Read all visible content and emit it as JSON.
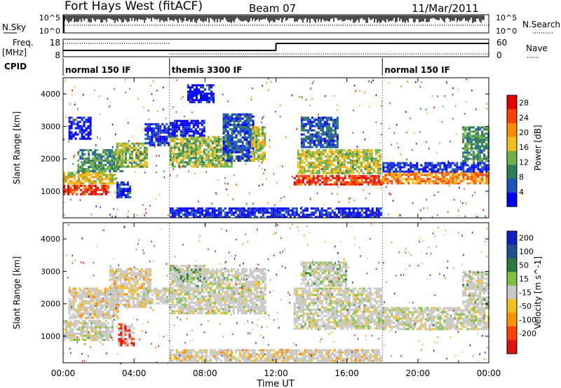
{
  "header": {
    "station": "Fort Hays West (fitACF)",
    "beam": "Beam 07",
    "date": "11/Mar/2011"
  },
  "panels": {
    "nsky": {
      "label": "N.Sky",
      "left_ticks": [
        "10^5",
        "10^0"
      ],
      "right_ticks": [
        "10^5",
        "10^0"
      ],
      "right_label": "N.Search",
      "series": [
        {
          "name": "N.Sky",
          "style": "solid"
        },
        {
          "name": "N.Search",
          "style": "dotted"
        }
      ]
    },
    "freq": {
      "label_line1": "Freq.",
      "label_line2": "[MHz]",
      "left_ticks": [
        "18",
        "8"
      ],
      "right_ticks": [
        "60",
        "0"
      ],
      "right_label": "Nave",
      "series": [
        {
          "name": "Freq.",
          "style": "solid"
        },
        {
          "name": "Nave",
          "style": "dotted"
        }
      ]
    },
    "cpid": {
      "label": "CPID",
      "segments": [
        {
          "name": "normal 150 IF",
          "start_h": 0,
          "end_h": 6
        },
        {
          "name": "themis 3300 IF",
          "start_h": 6,
          "end_h": 18
        },
        {
          "name": "normal 150 IF",
          "start_h": 18,
          "end_h": 24
        }
      ]
    }
  },
  "colors": {
    "power": [
      "#0000ff",
      "#1c4fc0",
      "#2e7d56",
      "#6fb04a",
      "#f0c020",
      "#ff8c00",
      "#ff4000",
      "#e80000"
    ],
    "velocity": [
      "#1020c0",
      "#205090",
      "#2a7a3a",
      "#80c040",
      "#c8c8c8",
      "#f0c020",
      "#ff9000",
      "#ff4000",
      "#e01010"
    ],
    "ground_scatter": "#b8b8b8"
  },
  "chart_data": [
    {
      "type": "heatmap",
      "title": "",
      "xlabel": "Time UT",
      "ylabel": "Slant Range [km]",
      "x_ticks": [
        "00:00",
        "04:00",
        "08:00",
        "12:00",
        "16:00",
        "20:00",
        "00:00"
      ],
      "y_ticks": [
        "1000",
        "2000",
        "3000",
        "4000"
      ],
      "xlim_hours": [
        0,
        24
      ],
      "ylim_km": [
        180,
        4500
      ],
      "colorbar": {
        "label": "Power [dB]",
        "ticks": [
          "4",
          "8",
          "12",
          "16",
          "20",
          "24",
          "28"
        ],
        "range": [
          0,
          30
        ]
      },
      "mode_boundaries_h": [
        6,
        18
      ],
      "regions": [
        {
          "t0": 0.0,
          "t1": 2.6,
          "r0": 850,
          "r1": 1200,
          "level": 0.85
        },
        {
          "t0": 0.0,
          "t1": 3.0,
          "r0": 1200,
          "r1": 1600,
          "level": 0.55
        },
        {
          "t0": 0.8,
          "t1": 3.4,
          "r0": 1600,
          "r1": 2300,
          "level": 0.35
        },
        {
          "t0": 0.3,
          "t1": 1.6,
          "r0": 2600,
          "r1": 3300,
          "level": 0.05
        },
        {
          "t0": 3.0,
          "t1": 4.8,
          "r0": 1700,
          "r1": 2500,
          "level": 0.45
        },
        {
          "t0": 4.6,
          "t1": 6.0,
          "r0": 2400,
          "r1": 3100,
          "level": 0.12
        },
        {
          "t0": 3.0,
          "t1": 3.8,
          "r0": 750,
          "r1": 1300,
          "level": 0.15
        },
        {
          "t0": 6.0,
          "t1": 9.5,
          "r0": 1700,
          "r1": 2700,
          "level": 0.45
        },
        {
          "t0": 6.0,
          "t1": 8.0,
          "r0": 2700,
          "r1": 3200,
          "level": 0.05
        },
        {
          "t0": 9.0,
          "t1": 10.8,
          "r0": 1900,
          "r1": 3400,
          "level": 0.2
        },
        {
          "t0": 7.0,
          "t1": 8.5,
          "r0": 3700,
          "r1": 4300,
          "level": 0.05
        },
        {
          "t0": 10.6,
          "t1": 11.4,
          "r0": 1900,
          "r1": 3000,
          "level": 0.5
        },
        {
          "t0": 13.0,
          "t1": 18.0,
          "r0": 1150,
          "r1": 1500,
          "level": 0.85
        },
        {
          "t0": 13.2,
          "t1": 18.0,
          "r0": 1500,
          "r1": 2300,
          "level": 0.5
        },
        {
          "t0": 13.4,
          "t1": 15.5,
          "r0": 2300,
          "r1": 3300,
          "level": 0.2
        },
        {
          "t0": 18.0,
          "t1": 24.0,
          "r0": 1200,
          "r1": 1600,
          "level": 0.7
        },
        {
          "t0": 18.0,
          "t1": 24.0,
          "r0": 1600,
          "r1": 1900,
          "level": 0.12
        },
        {
          "t0": 22.5,
          "t1": 24.0,
          "r0": 1900,
          "r1": 3000,
          "level": 0.35
        },
        {
          "t0": 6.0,
          "t1": 18.0,
          "r0": 180,
          "r1": 500,
          "level": 0.08
        }
      ]
    },
    {
      "type": "heatmap",
      "title": "",
      "xlabel": "Time UT",
      "ylabel": "Slant Range [km]",
      "x_ticks": [
        "00:00",
        "04:00",
        "08:00",
        "12:00",
        "16:00",
        "20:00",
        "00:00"
      ],
      "y_ticks": [
        "1000",
        "2000",
        "3000",
        "4000"
      ],
      "xlim_hours": [
        0,
        24
      ],
      "ylim_km": [
        180,
        4500
      ],
      "colorbar": {
        "label": "Velocity [m s^-1]",
        "ticks": [
          "200",
          "100",
          "50",
          "15",
          "-15",
          "-50",
          "-100",
          "-200"
        ],
        "range": [
          -250,
          250
        ]
      },
      "mode_boundaries_h": [
        6,
        18
      ],
      "regions": [
        {
          "t0": 0.0,
          "t1": 2.8,
          "r0": 850,
          "r1": 1500,
          "level": 0.5
        },
        {
          "t0": 0.3,
          "t1": 3.2,
          "r0": 1500,
          "r1": 2500,
          "level": 0.6
        },
        {
          "t0": 2.6,
          "t1": 5.0,
          "r0": 1900,
          "r1": 3100,
          "level": 0.62
        },
        {
          "t0": 3.1,
          "t1": 4.1,
          "r0": 700,
          "r1": 1400,
          "level": 0.95
        },
        {
          "t0": 4.5,
          "t1": 6.0,
          "r0": 2000,
          "r1": 2500,
          "level": 0.5
        },
        {
          "t0": 6.0,
          "t1": 11.4,
          "r0": 1700,
          "r1": 3100,
          "level": 0.5
        },
        {
          "t0": 6.0,
          "t1": 8.0,
          "r0": 2700,
          "r1": 3200,
          "level": 0.35
        },
        {
          "t0": 13.0,
          "t1": 18.0,
          "r0": 1200,
          "r1": 2500,
          "level": 0.5
        },
        {
          "t0": 13.4,
          "t1": 16.0,
          "r0": 2500,
          "r1": 3300,
          "level": 0.45
        },
        {
          "t0": 18.0,
          "t1": 24.0,
          "r0": 1200,
          "r1": 1900,
          "level": 0.5
        },
        {
          "t0": 22.5,
          "t1": 24.0,
          "r0": 1900,
          "r1": 3000,
          "level": 0.45
        },
        {
          "t0": 6.0,
          "t1": 18.0,
          "r0": 180,
          "r1": 600,
          "level": 0.62
        }
      ]
    }
  ]
}
